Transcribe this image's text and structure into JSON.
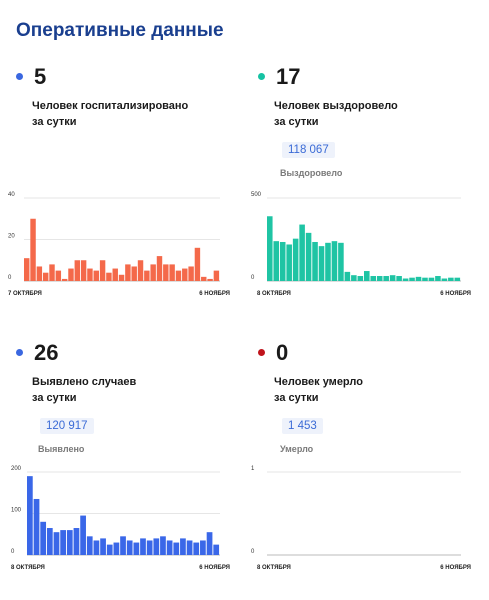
{
  "page_title": "Оперативные данные",
  "panels": [
    {
      "value": "5",
      "desc_line1": "Человек госпитализировано",
      "desc_line2": "за сутки",
      "dot_color": "#3a67e0"
    },
    {
      "value": "17",
      "desc_line1": "Человек выздоровело",
      "desc_line2": "за сутки",
      "total": "118 067",
      "total_label": "Выздоровело",
      "dot_color": "#16c2a3"
    },
    {
      "value": "26",
      "desc_line1": "Выявлено случаев",
      "desc_line2": "за сутки",
      "total": "120 917",
      "total_label": "Выявлено",
      "dot_color": "#3a67e0"
    },
    {
      "value": "0",
      "desc_line1": "Человек умерло",
      "desc_line2": "за сутки",
      "total": "1 453",
      "total_label": "Умерло",
      "dot_color": "#c0141c"
    }
  ],
  "chart_data": [
    {
      "type": "bar",
      "color": "#f4694a",
      "ylim": [
        0,
        40
      ],
      "yticks": [
        "0",
        "20",
        "40"
      ],
      "x_start_label": "7 ОКТЯБРЯ",
      "x_end_label": "6 НОЯБРЯ",
      "values": [
        11,
        30,
        7,
        4,
        8,
        5,
        1,
        6,
        10,
        10,
        6,
        5,
        10,
        4,
        6,
        3,
        8,
        7,
        10,
        5,
        8,
        12,
        8,
        8,
        5,
        6,
        7,
        16,
        2,
        1,
        5
      ]
    },
    {
      "type": "bar",
      "color": "#1fc4a4",
      "ylim": [
        0,
        500
      ],
      "yticks": [
        "0",
        "500"
      ],
      "x_start_label": "8 ОКТЯБРЯ",
      "x_end_label": "6 НОЯБРЯ",
      "values": [
        390,
        240,
        235,
        220,
        255,
        340,
        290,
        235,
        210,
        230,
        240,
        230,
        55,
        35,
        30,
        60,
        30,
        30,
        30,
        35,
        30,
        15,
        20,
        25,
        20,
        20,
        30,
        15,
        20,
        20
      ]
    },
    {
      "type": "bar",
      "color": "#3a67e8",
      "ylim": [
        0,
        200
      ],
      "yticks": [
        "0",
        "100",
        "200"
      ],
      "x_start_label": "8 ОКТЯБРЯ",
      "x_end_label": "6 НОЯБРЯ",
      "values": [
        190,
        135,
        80,
        65,
        55,
        60,
        60,
        65,
        95,
        45,
        35,
        40,
        25,
        30,
        45,
        35,
        30,
        40,
        35,
        40,
        45,
        35,
        30,
        40,
        35,
        30,
        35,
        55,
        25
      ]
    },
    {
      "type": "bar",
      "color": "#c0141c",
      "ylim": [
        0,
        1
      ],
      "yticks": [
        "0",
        "1"
      ],
      "x_start_label": "8 ОКТЯБРЯ",
      "x_end_label": "6 НОЯБРЯ",
      "values": []
    }
  ]
}
